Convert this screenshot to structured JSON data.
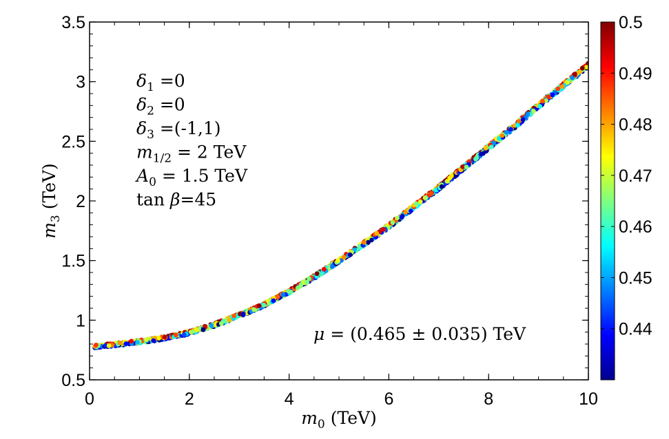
{
  "chart_data": {
    "type": "scatter",
    "title": "",
    "xlabel": {
      "var": "m",
      "sub": "0",
      "unit": "(TeV)"
    },
    "ylabel": {
      "var": "m",
      "sub": "3",
      "unit": "(TeV)"
    },
    "xlim": [
      0,
      10
    ],
    "ylim": [
      0.5,
      3.5
    ],
    "x_ticks": [
      0,
      2,
      4,
      6,
      8,
      10
    ],
    "x_tick_labels": [
      "0",
      "2",
      "4",
      "6",
      "8",
      "10"
    ],
    "y_ticks": [
      0.5,
      1,
      1.5,
      2,
      2.5,
      3,
      3.5
    ],
    "y_tick_labels": [
      "0.5",
      "1",
      "1.5",
      "2",
      "2.5",
      "3",
      "3.5"
    ],
    "grid": false,
    "curve_points": [
      [
        0.1,
        0.78
      ],
      [
        0.5,
        0.795
      ],
      [
        1,
        0.82
      ],
      [
        1.5,
        0.85
      ],
      [
        2,
        0.895
      ],
      [
        2.5,
        0.96
      ],
      [
        3,
        1.04
      ],
      [
        3.5,
        1.13
      ],
      [
        4,
        1.24
      ],
      [
        4.5,
        1.36
      ],
      [
        5,
        1.5
      ],
      [
        5.5,
        1.64
      ],
      [
        6,
        1.79
      ],
      [
        6.5,
        1.95
      ],
      [
        7,
        2.11
      ],
      [
        7.5,
        2.28
      ],
      [
        8,
        2.45
      ],
      [
        8.5,
        2.62
      ],
      [
        9,
        2.8
      ],
      [
        9.5,
        2.97
      ],
      [
        10,
        3.14
      ]
    ],
    "colorbar": {
      "range": [
        0.43,
        0.5
      ],
      "ticks": [
        0.44,
        0.45,
        0.46,
        0.47,
        0.48,
        0.49,
        0.5
      ],
      "tick_labels": [
        "0.44",
        "0.45",
        "0.46",
        "0.47",
        "0.48",
        "0.49",
        "0.5"
      ],
      "colormap": "jet"
    },
    "annotations": {
      "params": [
        {
          "sym": "δ",
          "sub": "1",
          "rest": " =0"
        },
        {
          "sym": "δ",
          "sub": "2",
          "rest": " =0"
        },
        {
          "sym": "δ",
          "sub": "3",
          "rest": " =(-1,1)"
        },
        {
          "sym": "m",
          "sub": "1/2",
          "rest": " = 2 TeV"
        },
        {
          "sym": "A",
          "sub": "0",
          "rest": " = 1.5 TeV"
        },
        {
          "pre": "tan ",
          "sym": "β",
          "sub": "",
          "rest": "=45"
        }
      ],
      "mu": {
        "sym": "μ",
        "rest": " = (0.465 ± 0.035) TeV"
      }
    }
  }
}
